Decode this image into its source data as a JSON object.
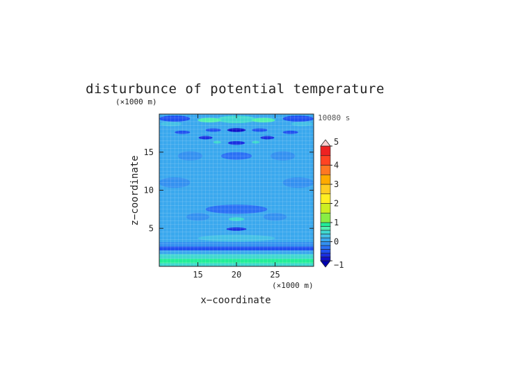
{
  "chart_data": {
    "type": "heatmap",
    "title": "disturbunce of potential temperature",
    "xlabel": "x−coordinate",
    "ylabel": "z−coordinate",
    "x_unit": "(×1000 m)",
    "y_unit": "(×1000 m)",
    "time_label": "10080 s",
    "xlim": [
      10,
      30
    ],
    "ylim": [
      0,
      20
    ],
    "x_ticks": [
      "15",
      "20",
      "25"
    ],
    "x_tick_values": [
      15,
      20,
      25
    ],
    "y_ticks": [
      "5",
      "10",
      "15"
    ],
    "y_tick_values": [
      5,
      10,
      15
    ],
    "colorbar": {
      "range": [
        -1,
        5
      ],
      "tick_labels": [
        "−1",
        "0",
        "1",
        "2",
        "3",
        "4",
        "5"
      ],
      "tick_values": [
        -1,
        0,
        1,
        2,
        3,
        4,
        5
      ],
      "levels": [
        -1.0,
        -0.8,
        -0.6,
        -0.4,
        -0.2,
        0.0,
        0.2,
        0.4,
        0.6,
        0.8,
        1.0,
        1.5,
        2.0,
        2.5,
        3.0,
        3.5,
        4.0,
        4.5,
        5.0
      ],
      "colors": [
        "#1010c8",
        "#1a2fe0",
        "#2050f0",
        "#2a70f5",
        "#3390f0",
        "#3aa8ee",
        "#44c0e6",
        "#40d8d0",
        "#50f0b0",
        "#22ee99",
        "#88ee44",
        "#ccee22",
        "#ffee22",
        "#ffcc22",
        "#ffaa00",
        "#ff7722",
        "#ff4422",
        "#ee2222",
        "#ff9999"
      ],
      "under_color": "#0000b0",
      "over_color": "#fbd0d0"
    },
    "bands": [
      {
        "z": [
          0.0,
          0.4
        ],
        "value": 0.5
      },
      {
        "z": [
          0.4,
          1.0
        ],
        "value": 0.9
      },
      {
        "z": [
          1.0,
          1.6
        ],
        "value": 0.5
      },
      {
        "z": [
          1.6,
          2.1
        ],
        "value": 0.1
      },
      {
        "z": [
          2.1,
          2.6
        ],
        "value": -0.5
      },
      {
        "z": [
          2.6,
          3.2
        ],
        "value": -0.2
      },
      {
        "z": [
          3.2,
          20.0
        ],
        "value": 0.0
      }
    ],
    "features": [
      {
        "x": 20,
        "z": 3.7,
        "rx": 5.0,
        "rz": 0.45,
        "value": 0.3
      },
      {
        "x": 20,
        "z": 4.9,
        "rx": 1.3,
        "rz": 0.22,
        "value": -0.7
      },
      {
        "x": 20,
        "z": 6.2,
        "rx": 1.0,
        "rz": 0.25,
        "value": 0.4
      },
      {
        "x": 20,
        "z": 7.5,
        "rx": 4.0,
        "rz": 0.6,
        "value": -0.25
      },
      {
        "x": 20,
        "z": 9.5,
        "rx": 6.0,
        "rz": 0.45,
        "value": 0.15
      },
      {
        "x": 20,
        "z": 12.6,
        "rx": 1.4,
        "rz": 0.7,
        "value": 0.15
      },
      {
        "x": 20,
        "z": 14.5,
        "rx": 2.0,
        "rz": 0.5,
        "value": -0.25
      },
      {
        "x": 20,
        "z": 16.2,
        "rx": 1.1,
        "rz": 0.25,
        "value": -0.8
      },
      {
        "x": 20,
        "z": 17.9,
        "rx": 1.2,
        "rz": 0.25,
        "value": -0.9
      },
      {
        "x": 20,
        "z": 19.3,
        "rx": 2.5,
        "rz": 0.5,
        "value": 0.5
      },
      {
        "x": 16.5,
        "z": 19.2,
        "rx": 1.5,
        "rz": 0.3,
        "value": 0.6
      },
      {
        "x": 23.5,
        "z": 19.2,
        "rx": 1.5,
        "rz": 0.3,
        "value": 0.6
      },
      {
        "x": 17,
        "z": 17.9,
        "rx": 1.0,
        "rz": 0.22,
        "value": -0.6
      },
      {
        "x": 23,
        "z": 17.9,
        "rx": 1.0,
        "rz": 0.22,
        "value": -0.6
      },
      {
        "x": 16,
        "z": 16.9,
        "rx": 0.9,
        "rz": 0.22,
        "value": -0.7
      },
      {
        "x": 24,
        "z": 16.9,
        "rx": 0.9,
        "rz": 0.22,
        "value": -0.7
      },
      {
        "x": 17.5,
        "z": 16.3,
        "rx": 0.5,
        "rz": 0.18,
        "value": 0.5
      },
      {
        "x": 22.5,
        "z": 16.3,
        "rx": 0.5,
        "rz": 0.18,
        "value": 0.5
      },
      {
        "x": 13,
        "z": 17.6,
        "rx": 1.0,
        "rz": 0.22,
        "value": -0.6
      },
      {
        "x": 27,
        "z": 17.6,
        "rx": 1.0,
        "rz": 0.22,
        "value": -0.6
      },
      {
        "x": 12,
        "z": 19.4,
        "rx": 2.0,
        "rz": 0.4,
        "value": -0.6
      },
      {
        "x": 28,
        "z": 19.4,
        "rx": 2.0,
        "rz": 0.4,
        "value": -0.6
      },
      {
        "x": 11.5,
        "z": 18.7,
        "rx": 1.4,
        "rz": 0.3,
        "value": 0.3
      },
      {
        "x": 28.5,
        "z": 18.7,
        "rx": 1.4,
        "rz": 0.3,
        "value": 0.3
      },
      {
        "x": 14,
        "z": 14.5,
        "rx": 1.6,
        "rz": 0.6,
        "value": -0.2
      },
      {
        "x": 26,
        "z": 14.5,
        "rx": 1.6,
        "rz": 0.6,
        "value": -0.2
      },
      {
        "x": 12,
        "z": 11.0,
        "rx": 2.0,
        "rz": 0.7,
        "value": -0.15
      },
      {
        "x": 28,
        "z": 11.0,
        "rx": 2.0,
        "rz": 0.7,
        "value": -0.15
      },
      {
        "x": 15,
        "z": 6.5,
        "rx": 1.5,
        "rz": 0.5,
        "value": -0.15
      },
      {
        "x": 25,
        "z": 6.5,
        "rx": 1.5,
        "rz": 0.5,
        "value": -0.15
      }
    ]
  }
}
